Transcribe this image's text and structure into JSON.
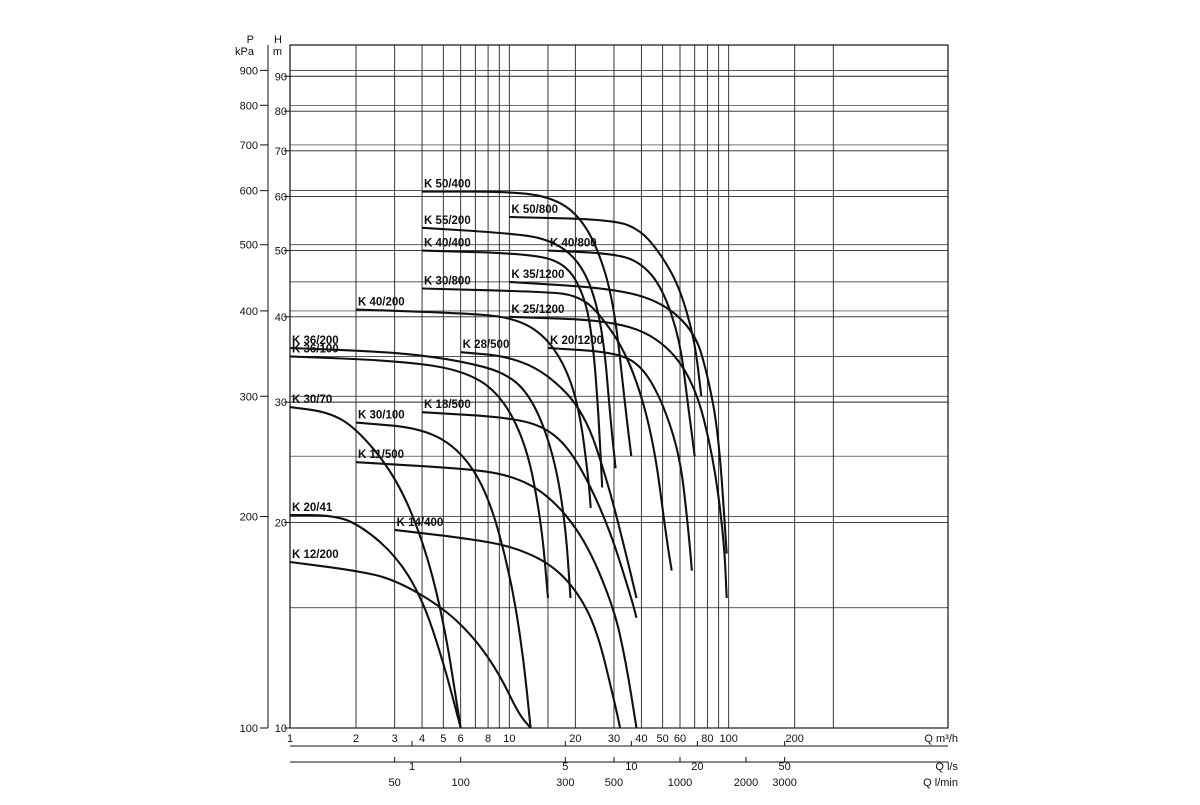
{
  "chart_data": {
    "type": "line",
    "title": "",
    "x_scale": "log",
    "y_scale": "log",
    "xlim": [
      1,
      1000
    ],
    "ylim": [
      10,
      100
    ],
    "y_label": "H",
    "y_unit": "m",
    "y2_label": "P",
    "y2_unit": "kPa",
    "y_ticks": [
      10,
      20,
      30,
      40,
      50,
      60,
      70,
      80,
      90
    ],
    "p_ticks": [
      {
        "label": "100",
        "h": 10
      },
      {
        "label": "200",
        "h": 20.4
      },
      {
        "label": "300",
        "h": 30.6
      },
      {
        "label": "400",
        "h": 40.8
      },
      {
        "label": "500",
        "h": 51
      },
      {
        "label": "600",
        "h": 61.2
      },
      {
        "label": "700",
        "h": 71.4
      },
      {
        "label": "800",
        "h": 81.6
      },
      {
        "label": "900",
        "h": 91.8
      }
    ],
    "x_axes": [
      {
        "unit": "Q m³/h",
        "ticks": [
          {
            "label": "1",
            "q": 1
          },
          {
            "label": "2",
            "q": 2
          },
          {
            "label": "3",
            "q": 3
          },
          {
            "label": "4",
            "q": 4
          },
          {
            "label": "5",
            "q": 5
          },
          {
            "label": "6",
            "q": 6
          },
          {
            "label": "8",
            "q": 8
          },
          {
            "label": "10",
            "q": 10
          },
          {
            "label": "20",
            "q": 20
          },
          {
            "label": "30",
            "q": 30
          },
          {
            "label": "40",
            "q": 40
          },
          {
            "label": "50",
            "q": 50
          },
          {
            "label": "60",
            "q": 60
          },
          {
            "label": "80",
            "q": 80
          },
          {
            "label": "100",
            "q": 100
          },
          {
            "label": "200",
            "q": 200
          }
        ]
      },
      {
        "unit": "Q l/s",
        "ticks": [
          {
            "label": "1",
            "q": 3.6
          },
          {
            "label": "5",
            "q": 18
          },
          {
            "label": "10",
            "q": 36
          },
          {
            "label": "20",
            "q": 72
          },
          {
            "label": "50",
            "q": 180
          }
        ]
      },
      {
        "unit": "Q l/min",
        "ticks": [
          {
            "label": "50",
            "q": 3
          },
          {
            "label": "100",
            "q": 6
          },
          {
            "label": "300",
            "q": 18
          },
          {
            "label": "500",
            "q": 30
          },
          {
            "label": "1000",
            "q": 60
          },
          {
            "label": "2000",
            "q": 120
          },
          {
            "label": "3000",
            "q": 180
          }
        ]
      }
    ],
    "series": [
      {
        "name": "K 50/400",
        "points": [
          [
            4,
            61
          ],
          [
            10,
            61
          ],
          [
            15,
            60
          ],
          [
            20,
            57
          ],
          [
            25,
            51
          ],
          [
            30,
            42
          ],
          [
            34,
            29
          ],
          [
            36,
            25
          ]
        ]
      },
      {
        "name": "K 50/800",
        "points": [
          [
            10,
            56
          ],
          [
            30,
            55.5
          ],
          [
            40,
            53.5
          ],
          [
            50,
            49
          ],
          [
            60,
            44
          ],
          [
            70,
            37
          ],
          [
            75,
            30.6
          ]
        ]
      },
      {
        "name": "K 55/200",
        "points": [
          [
            4,
            54
          ],
          [
            10,
            53
          ],
          [
            15,
            52
          ],
          [
            20,
            49
          ],
          [
            24,
            44
          ],
          [
            27,
            37
          ],
          [
            29,
            28
          ],
          [
            30.5,
            24
          ]
        ]
      },
      {
        "name": "K 40/400",
        "points": [
          [
            4,
            50
          ],
          [
            12,
            49.5
          ],
          [
            18,
            48
          ],
          [
            22,
            43
          ],
          [
            24,
            37
          ],
          [
            25.5,
            29
          ],
          [
            26.5,
            22.5
          ]
        ]
      },
      {
        "name": "K 40/800",
        "points": [
          [
            15,
            50
          ],
          [
            30,
            49.5
          ],
          [
            40,
            48
          ],
          [
            50,
            44
          ],
          [
            60,
            37
          ],
          [
            65,
            30
          ],
          [
            70,
            25
          ]
        ]
      },
      {
        "name": "K 30/800",
        "points": [
          [
            4,
            44
          ],
          [
            15,
            43.5
          ],
          [
            20,
            43
          ],
          [
            25,
            41
          ],
          [
            35,
            35
          ],
          [
            45,
            27
          ],
          [
            52,
            19
          ],
          [
            55,
            17
          ]
        ]
      },
      {
        "name": "K 35/1200",
        "points": [
          [
            10,
            45
          ],
          [
            30,
            44
          ],
          [
            50,
            42
          ],
          [
            70,
            38
          ],
          [
            80,
            33
          ],
          [
            90,
            27
          ],
          [
            98,
            18
          ]
        ]
      },
      {
        "name": "K 40/200",
        "points": [
          [
            2,
            41
          ],
          [
            6,
            40.5
          ],
          [
            10,
            40
          ],
          [
            14,
            38
          ],
          [
            18,
            34
          ],
          [
            21,
            29
          ],
          [
            23,
            23
          ],
          [
            23.5,
            21
          ]
        ]
      },
      {
        "name": "K 25/1200",
        "points": [
          [
            10,
            40
          ],
          [
            30,
            39.5
          ],
          [
            50,
            37
          ],
          [
            70,
            32
          ],
          [
            85,
            25
          ],
          [
            95,
            19
          ],
          [
            98,
            15.5
          ]
        ]
      },
      {
        "name": "K 36/200",
        "points": [
          [
            1,
            36
          ],
          [
            3,
            35.5
          ],
          [
            6,
            34.5
          ],
          [
            10,
            33
          ],
          [
            13,
            30
          ],
          [
            16,
            25
          ],
          [
            18,
            20
          ],
          [
            19,
            15.5
          ]
        ]
      },
      {
        "name": "K 36/100",
        "points": [
          [
            1,
            35
          ],
          [
            3,
            34.5
          ],
          [
            6,
            33.5
          ],
          [
            9,
            31
          ],
          [
            12,
            26
          ],
          [
            14,
            20
          ],
          [
            15,
            15.5
          ]
        ]
      },
      {
        "name": "K 28/500",
        "points": [
          [
            6,
            35.5
          ],
          [
            10,
            35
          ],
          [
            15,
            33
          ],
          [
            22,
            29
          ],
          [
            28,
            23
          ],
          [
            34,
            18
          ],
          [
            38,
            15.5
          ]
        ]
      },
      {
        "name": "K 20/1200",
        "points": [
          [
            15,
            36
          ],
          [
            30,
            35.5
          ],
          [
            40,
            34
          ],
          [
            50,
            30
          ],
          [
            60,
            25
          ],
          [
            65,
            20
          ],
          [
            68,
            17
          ]
        ]
      },
      {
        "name": "K 30/70",
        "points": [
          [
            1,
            29.5
          ],
          [
            1.5,
            29
          ],
          [
            2,
            27.5
          ],
          [
            3,
            23.5
          ],
          [
            4,
            19
          ],
          [
            5,
            14.5
          ],
          [
            6,
            10
          ]
        ]
      },
      {
        "name": "K 30/100",
        "points": [
          [
            2,
            28
          ],
          [
            4,
            27.5
          ],
          [
            6,
            25.5
          ],
          [
            8,
            22
          ],
          [
            10,
            17
          ],
          [
            11.5,
            13
          ],
          [
            12.5,
            10
          ]
        ]
      },
      {
        "name": "K 18/500",
        "points": [
          [
            4,
            29
          ],
          [
            10,
            28.5
          ],
          [
            15,
            27.5
          ],
          [
            20,
            25
          ],
          [
            28,
            20
          ],
          [
            36,
            15.5
          ],
          [
            38,
            14.5
          ]
        ]
      },
      {
        "name": "K 11/500",
        "points": [
          [
            2,
            24.5
          ],
          [
            6,
            24
          ],
          [
            10,
            23.5
          ],
          [
            15,
            22
          ],
          [
            22,
            19
          ],
          [
            30,
            15
          ],
          [
            34,
            12.5
          ],
          [
            38,
            10
          ]
        ]
      },
      {
        "name": "K 20/41",
        "points": [
          [
            1,
            20.5
          ],
          [
            1.5,
            20.5
          ],
          [
            2,
            20
          ],
          [
            3,
            18
          ],
          [
            4,
            15.5
          ],
          [
            5,
            12.5
          ],
          [
            6,
            10
          ]
        ]
      },
      {
        "name": "K 14/400",
        "points": [
          [
            3,
            19.5
          ],
          [
            6,
            19
          ],
          [
            10,
            18.5
          ],
          [
            15,
            17.5
          ],
          [
            20,
            16
          ],
          [
            25,
            14
          ],
          [
            30,
            11
          ],
          [
            32,
            10
          ]
        ]
      },
      {
        "name": "K 12/200",
        "points": [
          [
            1,
            17.5
          ],
          [
            2,
            17
          ],
          [
            3,
            16.5
          ],
          [
            5,
            15
          ],
          [
            7,
            13.5
          ],
          [
            9,
            12
          ],
          [
            11,
            10.5
          ],
          [
            12.5,
            10
          ]
        ]
      }
    ]
  }
}
